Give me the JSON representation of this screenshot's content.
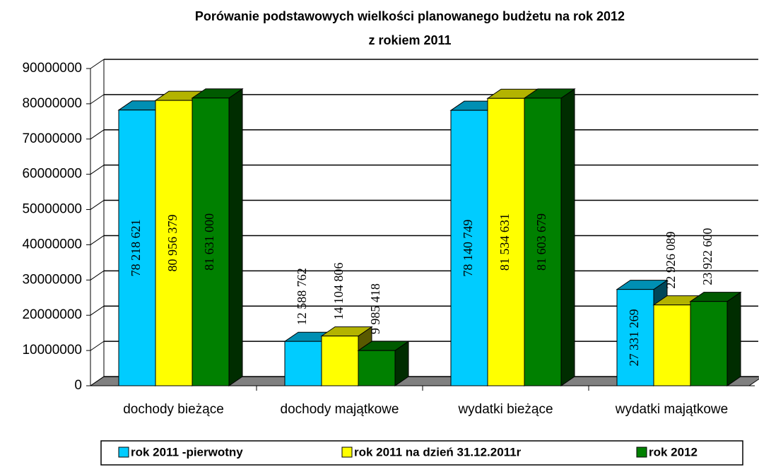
{
  "chart_data": {
    "type": "bar3d",
    "title": [
      "Porówanie podstawowych wielkości planowanego budżetu na rok 2012",
      "z rokiem 2011"
    ],
    "categories": [
      "dochody bieżące",
      "dochody majątkowe",
      "wydatki bieżące",
      "wydatki majątkowe"
    ],
    "series": [
      {
        "name": "rok 2011 -pierwotny",
        "color": "#00ccff",
        "values": [
          78218621,
          12588762,
          78140749,
          27331269
        ],
        "value_labels": [
          "78 218 621",
          "12 588 762",
          "78 140 749",
          "27 331 269"
        ]
      },
      {
        "name": "rok 2011 na dzień 31.12.2011r",
        "color": "#ffff00",
        "values": [
          80956379,
          14104806,
          81534631,
          22926089
        ],
        "value_labels": [
          "80 956 379",
          "14 104 806",
          "81 534 631",
          "22 926 089"
        ]
      },
      {
        "name": "rok 2012",
        "color": "#008000",
        "values": [
          81631000,
          9985418,
          81603679,
          23922600
        ],
        "value_labels": [
          "81 631 000",
          "9 985 418",
          "81 603 679",
          "23 922 600"
        ]
      }
    ],
    "ylim": [
      0,
      90000000
    ],
    "yticks": [
      0,
      10000000,
      20000000,
      30000000,
      40000000,
      50000000,
      60000000,
      70000000,
      80000000,
      90000000
    ],
    "grid": true,
    "legend": "bottom"
  }
}
